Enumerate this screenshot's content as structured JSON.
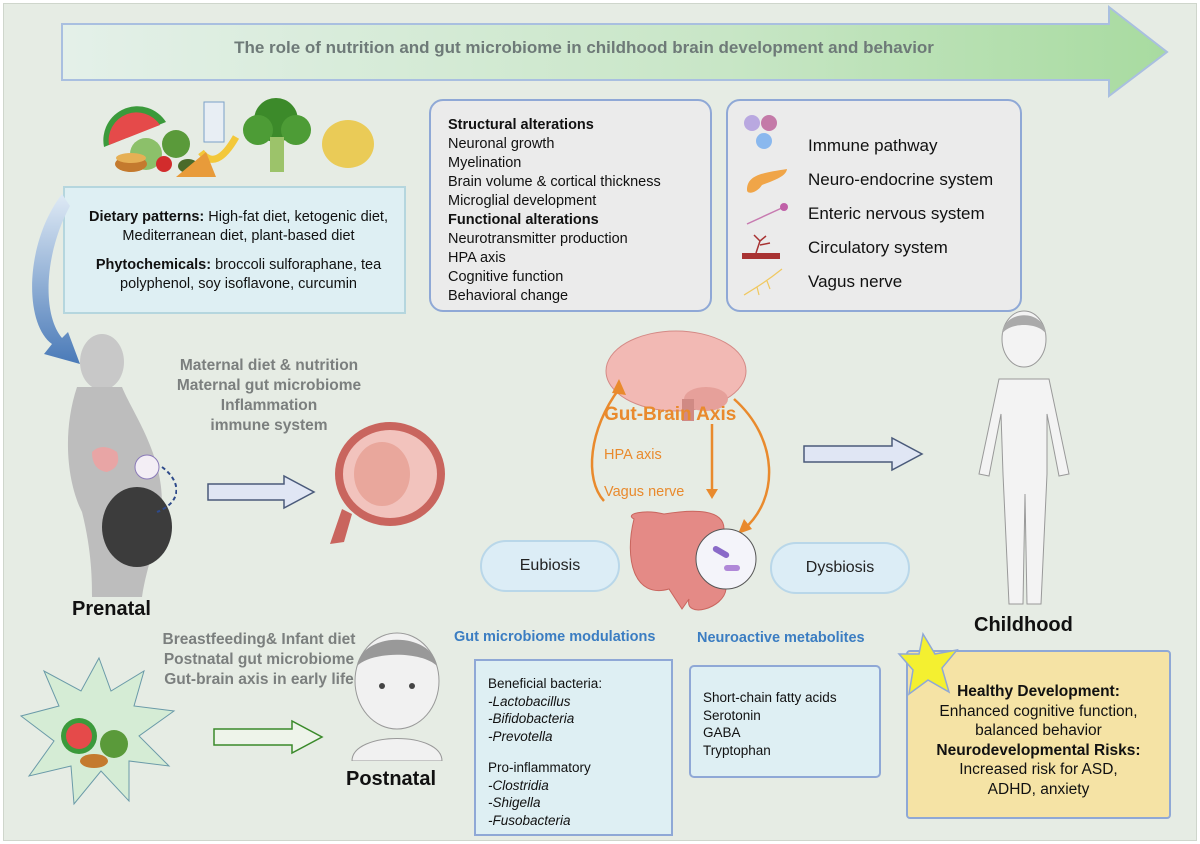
{
  "title": "The role of nutrition and gut microbiome in childhood brain development and behavior",
  "diet_box": {
    "dietary_label": "Dietary patterns:",
    "dietary_text": " High-fat diet, ketogenic diet, Mediterranean diet, plant-based diet",
    "phyto_label": "Phytochemicals:",
    "phyto_text": " broccoli sulforaphane, tea polyphenol, soy isoflavone, curcumin"
  },
  "alterations": {
    "structural_heading": "Structural alterations",
    "structural": [
      "Neuronal growth",
      "Myelination",
      "Brain volume & cortical thickness",
      "Microglial development"
    ],
    "functional_heading": "Functional alterations",
    "functional": [
      "Neurotransmitter production",
      "HPA axis",
      "Cognitive function",
      "Behavioral change"
    ]
  },
  "pathways": [
    {
      "label": "Immune pathway",
      "icon": "immune-cells-icon"
    },
    {
      "label": "Neuro-endocrine system",
      "icon": "pancreas-icon"
    },
    {
      "label": "Enteric nervous system",
      "icon": "neuron-icon"
    },
    {
      "label": "Circulatory system",
      "icon": "blood-vessel-icon"
    },
    {
      "label": "Vagus nerve",
      "icon": "vagus-nerve-icon"
    }
  ],
  "prenatal": {
    "factors": [
      "Maternal diet & nutrition",
      "Maternal gut microbiome",
      "Inflammation",
      "immune system"
    ],
    "label": "Prenatal"
  },
  "postnatal": {
    "factors": [
      "Breastfeeding& Infant diet",
      "Postnatal gut microbiome",
      "Gut-brain axis in early life"
    ],
    "label": "Postnatal"
  },
  "gut_brain": {
    "title": "Gut-Brain Axis",
    "hpa": "HPA axis",
    "vagus": "Vagus nerve",
    "eubiosis": "Eubiosis",
    "dysbiosis": "Dysbiosis"
  },
  "modulations": {
    "heading": "Gut microbiome modulations",
    "beneficial_heading": "Beneficial bacteria:",
    "beneficial": [
      "-Lactobacillus",
      "-Bifidobacteria",
      "-Prevotella"
    ],
    "pro_heading": "Pro-inflammatory",
    "pro": [
      "-Clostridia",
      "-Shigella",
      "-Fusobacteria"
    ]
  },
  "metabolites": {
    "heading": "Neuroactive metabolites",
    "items": [
      "Short-chain fatty acids",
      "Serotonin",
      "GABA",
      "Tryptophan"
    ]
  },
  "childhood": {
    "label": "Childhood",
    "healthy_heading": "Healthy Development:",
    "healthy_text": "Enhanced cognitive function, balanced behavior",
    "risk_heading": "Neurodevelopmental Risks:",
    "risk_text": "Increased risk for ASD, ADHD, anxiety"
  },
  "colors": {
    "accent_orange": "#e98a2d",
    "accent_blue": "#3b7dc2",
    "box_border": "#8fa8d6",
    "yellow_box": "#f5e3a5"
  }
}
